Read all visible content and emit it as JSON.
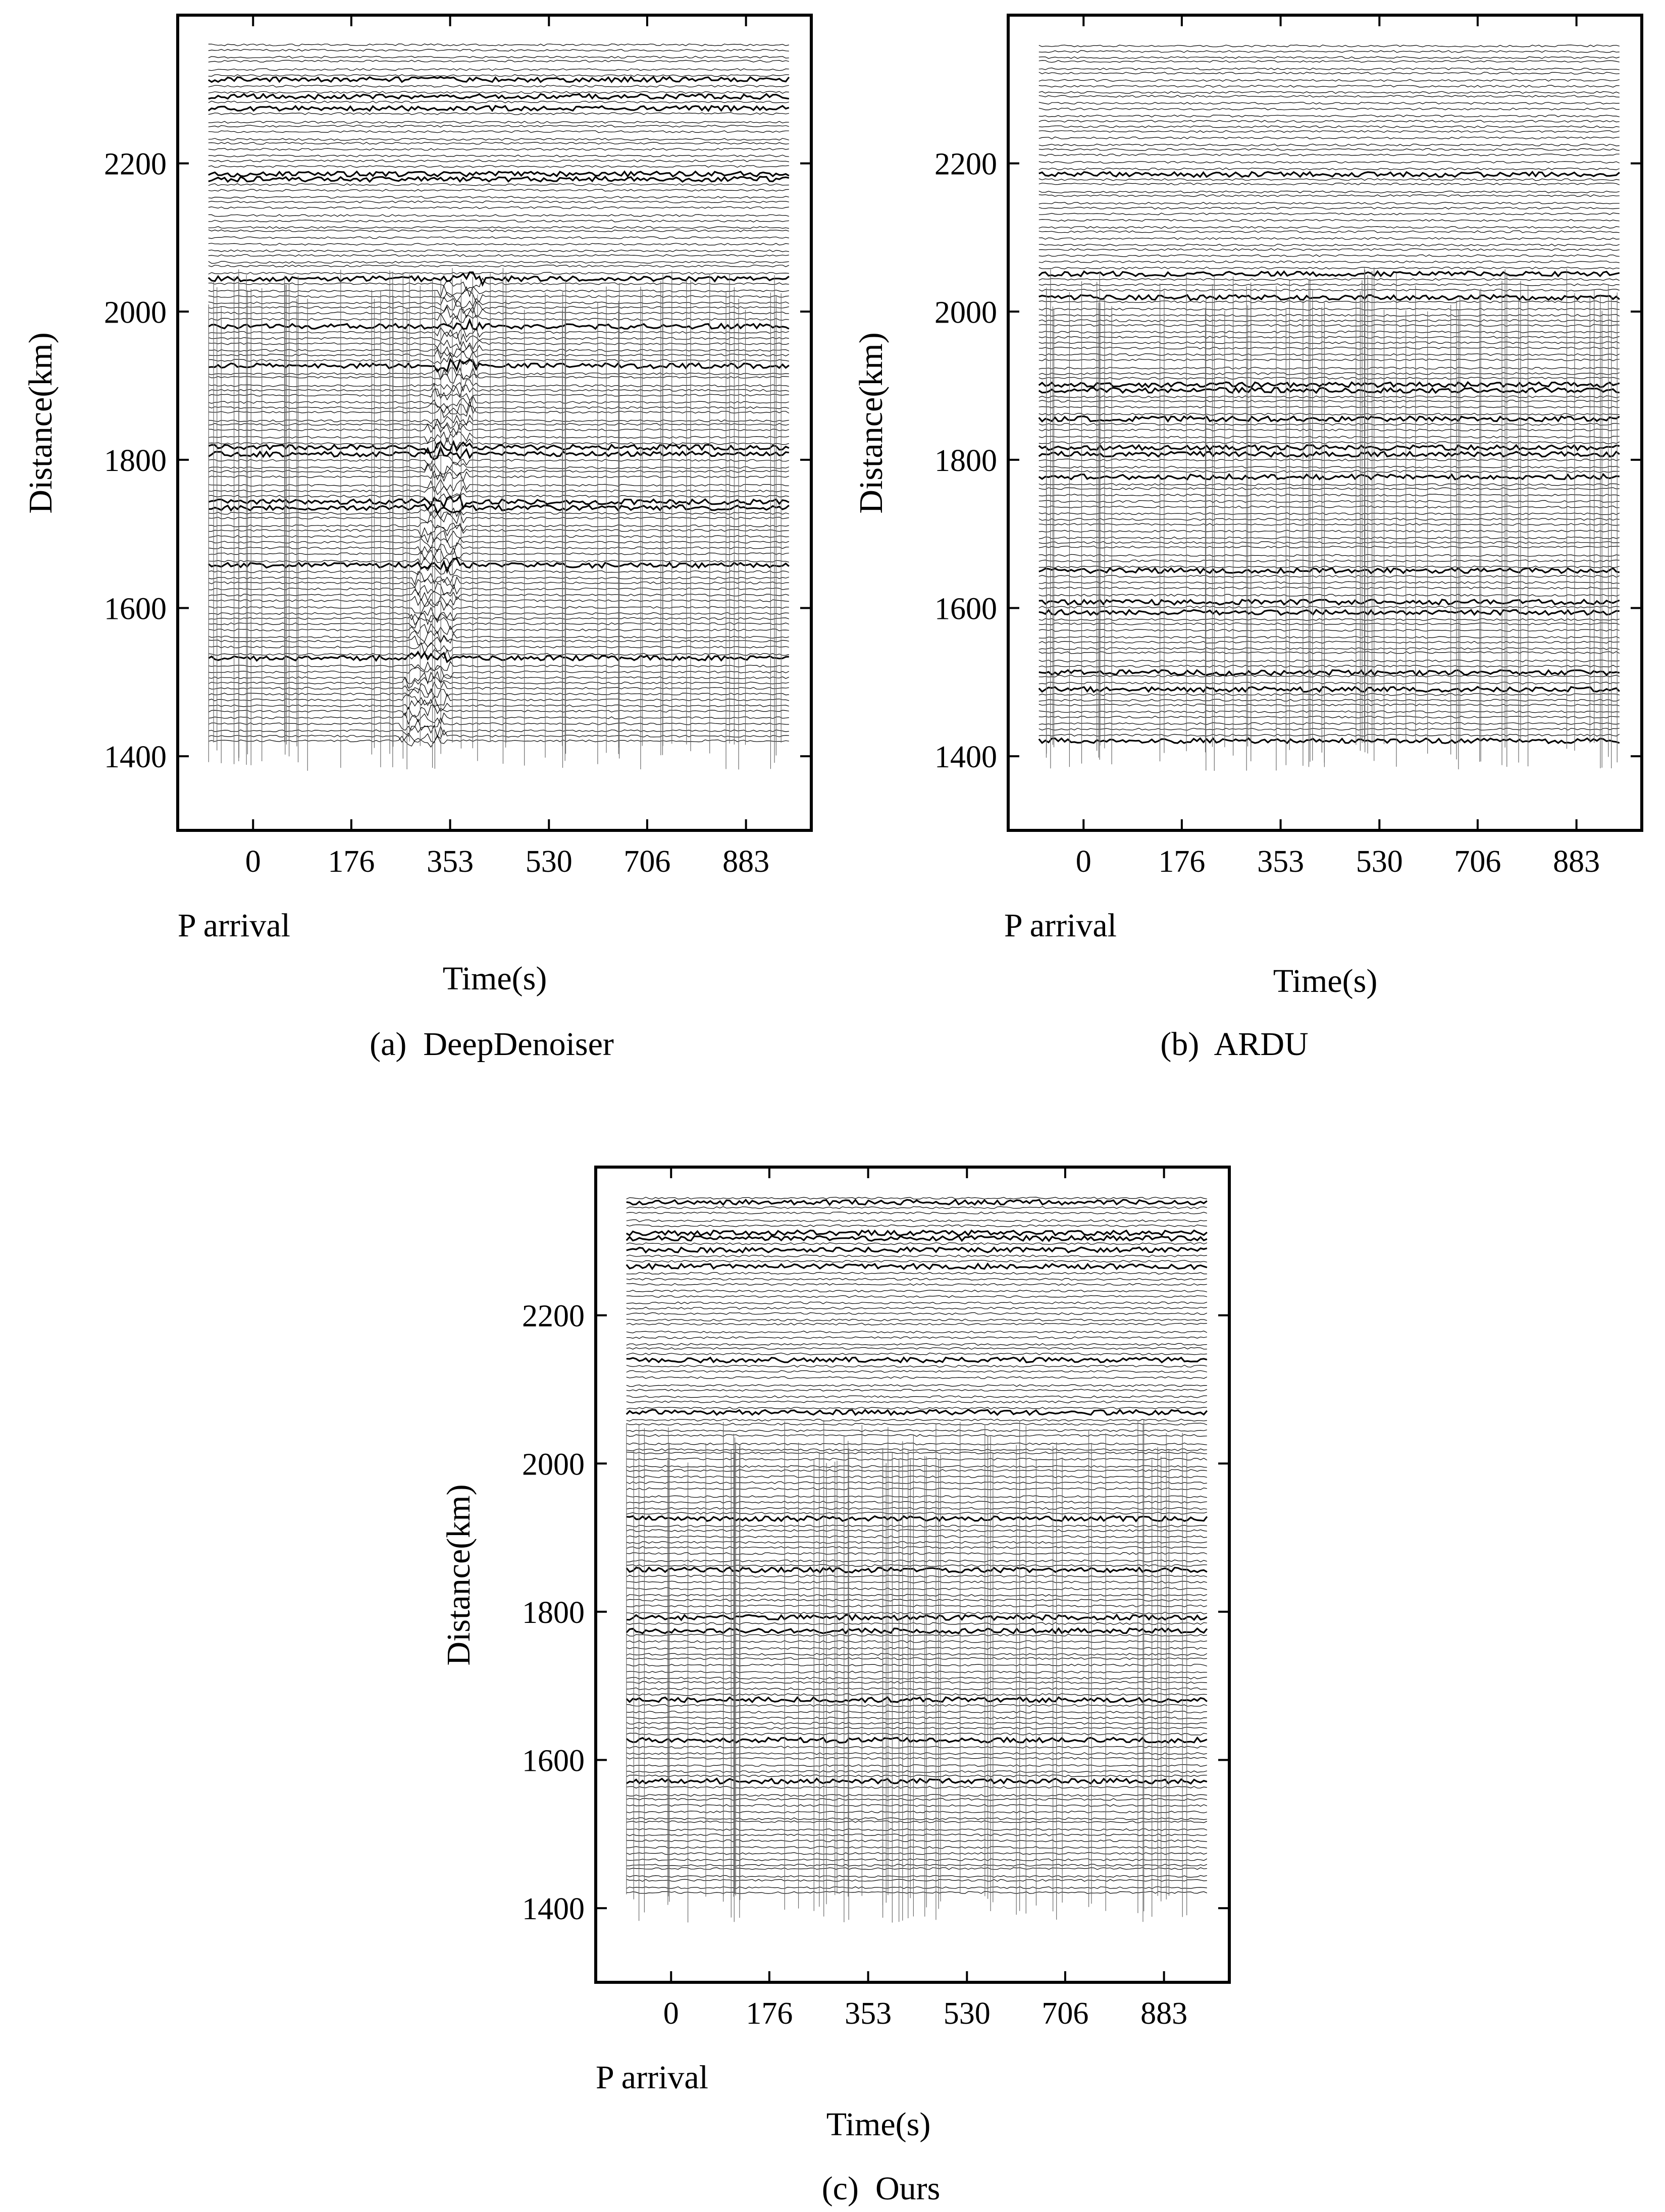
{
  "figure": {
    "panels": [
      {
        "caption": "(a)  DeepDenoiser"
      },
      {
        "caption": "(b)  ARDU"
      },
      {
        "caption": "(c)  Ours"
      }
    ]
  },
  "chart_data": [
    {
      "type": "line",
      "panel": "a",
      "caption": "(a)  DeepDenoiser",
      "xlabel": "Time(s)",
      "ylabel": "Distance(km)",
      "x_ticks": [
        "0",
        "176",
        "353",
        "530",
        "706",
        "883"
      ],
      "x_tick_values": [
        0,
        176,
        353,
        530,
        706,
        883
      ],
      "x_annotation": "P arrival",
      "y_ticks": [
        "1400",
        "1600",
        "1800",
        "2000",
        "2200"
      ],
      "y_tick_values": [
        1400,
        1600,
        1800,
        2000,
        2200
      ],
      "xlim": [
        -135,
        1000
      ],
      "ylim": [
        1300,
        2400
      ],
      "grid": false,
      "trace_distance_range_km": [
        1420,
        2360
      ],
      "trace_time_range_s": [
        -80,
        960
      ],
      "signal_band": {
        "center_time_s": 300,
        "note": "coherent arrival band"
      }
    },
    {
      "type": "line",
      "panel": "b",
      "caption": "(b)  ARDU",
      "xlabel": "Time(s)",
      "ylabel": "Distance(km)",
      "x_ticks": [
        "0",
        "176",
        "353",
        "530",
        "706",
        "883"
      ],
      "x_tick_values": [
        0,
        176,
        353,
        530,
        706,
        883
      ],
      "x_annotation": "P arrival",
      "y_ticks": [
        "1400",
        "1600",
        "1800",
        "2000",
        "2200"
      ],
      "y_tick_values": [
        1400,
        1600,
        1800,
        2000,
        2200
      ],
      "xlim": [
        -135,
        1000
      ],
      "ylim": [
        1300,
        2400
      ],
      "grid": false,
      "trace_distance_range_km": [
        1420,
        2360
      ],
      "trace_time_range_s": [
        -80,
        960
      ]
    },
    {
      "type": "line",
      "panel": "c",
      "caption": "(c)  Ours",
      "xlabel": "Time(s)",
      "ylabel": "Distance(km)",
      "x_ticks": [
        "0",
        "176",
        "353",
        "530",
        "706",
        "883"
      ],
      "x_tick_values": [
        0,
        176,
        353,
        530,
        706,
        883
      ],
      "x_annotation": "P arrival",
      "y_ticks": [
        "1400",
        "1600",
        "1800",
        "2000",
        "2200"
      ],
      "y_tick_values": [
        1400,
        1600,
        1800,
        2000,
        2200
      ],
      "xlim": [
        -135,
        1000
      ],
      "ylim": [
        1300,
        2400
      ],
      "grid": false,
      "trace_distance_range_km": [
        1420,
        2360
      ],
      "trace_time_range_s": [
        -80,
        960
      ]
    }
  ]
}
